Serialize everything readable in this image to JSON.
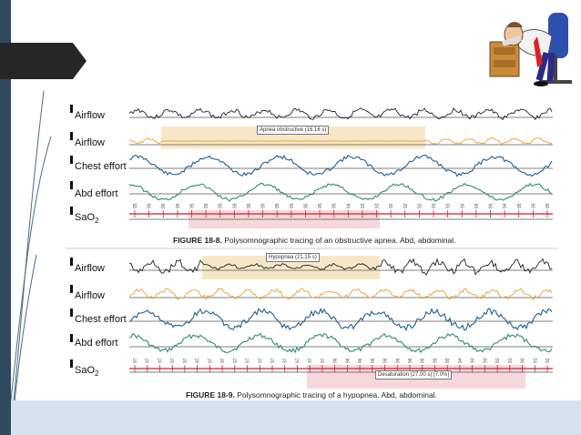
{
  "slide": {
    "accent_color": "#2f4a5e",
    "background_band_color": "#d7e3ec"
  },
  "figure_a": {
    "labels": {
      "airflow_1": "Airflow",
      "airflow_2": "Airflow",
      "chest_effort": "Chest effort",
      "abd_effort": "Abd effort",
      "sao2": "SaO",
      "sao2_sub": "2"
    },
    "event_label": "Apnea obstructive (16.16 s)",
    "caption_number": "FIGURE 18-8.",
    "caption_text": "Polysomnographic tracing of an obstructive apnea. Abd, abdominal.",
    "sao2_values": [
      "95",
      "95",
      "95",
      "95",
      "95",
      "95",
      "95",
      "95",
      "95",
      "95",
      "95",
      "95",
      "95",
      "95",
      "95",
      "94",
      "93",
      "92",
      "92",
      "92",
      "92",
      "93",
      "93",
      "94",
      "94",
      "94",
      "94",
      "95",
      "95",
      "95"
    ]
  },
  "figure_b": {
    "labels": {
      "airflow_1": "Airflow",
      "airflow_2": "Airflow",
      "chest_effort": "Chest effort",
      "abd_effort": "Abd effort",
      "sao2": "SaO",
      "sao2_sub": "2"
    },
    "event_label": "Hypopnea (21.15 s)",
    "desat_label": "Desaturation (27.00 s) [7.0%]",
    "caption_number": "FIGURE 18-9.",
    "caption_text": "Polysomnographic tracing of a hypopnea. Abd, abdominal.",
    "sao2_values": [
      "97",
      "97",
      "97",
      "97",
      "97",
      "97",
      "97",
      "97",
      "97",
      "97",
      "97",
      "97",
      "97",
      "97",
      "97",
      "97",
      "96",
      "96",
      "96",
      "96",
      "96",
      "96",
      "96",
      "96",
      "95",
      "95",
      "94",
      "94",
      "93",
      "92",
      "91",
      "90",
      "91",
      "92"
    ]
  },
  "colors": {
    "airflow_thermal": "#222222",
    "airflow_pressure": "#e8a030",
    "chest": "#1f5f8b",
    "abd": "#2e8a7a",
    "sao2": "#cc2233",
    "event_band": "#f7e7c7",
    "desat_band": "#f6d8dc"
  }
}
